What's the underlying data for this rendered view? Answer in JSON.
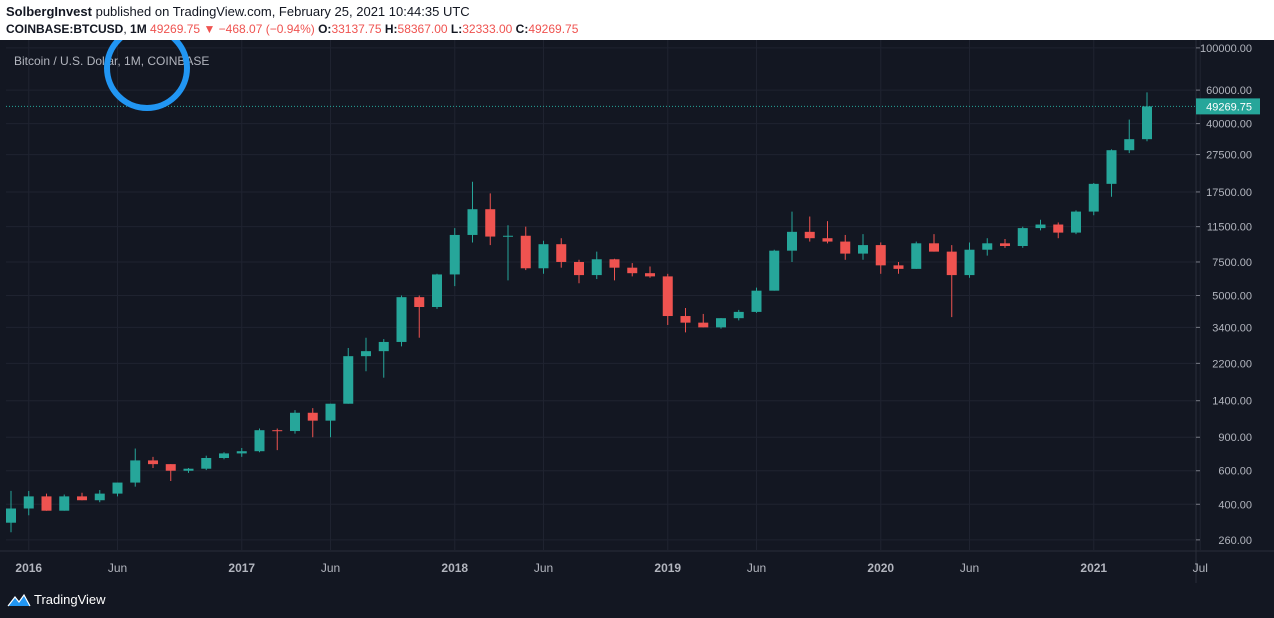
{
  "header": {
    "publisher": "SolbergInvest",
    "published_text": "published on TradingView.com, February 25, 2021 10:44:35 UTC",
    "symbol": "COINBASE:BTCUSD",
    "interval": "1M",
    "last": "49269.75",
    "arrow": "▼",
    "change": "−468.07 (−0.94%)",
    "open_label": "O:",
    "open": "33137.75",
    "high_label": "H:",
    "high": "58367.00",
    "low_label": "L:",
    "low": "32333.00",
    "close_label": "C:",
    "close": "49269.75"
  },
  "footer": {
    "brand": "TradingView"
  },
  "colors": {
    "up": "#26a69a",
    "down": "#ef5350",
    "background": "#131722",
    "highlight_circle": "#2196f3"
  },
  "chart_data": {
    "type": "candlestick",
    "title": "Bitcoin / U.S. Dollar, 1M, COINBASE",
    "last_price_label": "49269.75",
    "y_scale": "log",
    "ylim": [
      230,
      110000
    ],
    "y_ticks": [
      "100000.00",
      "60000.00",
      "40000.00",
      "27500.00",
      "17500.00",
      "11500.00",
      "7500.00",
      "5000.00",
      "3400.00",
      "2200.00",
      "1400.00",
      "900.00",
      "600.00",
      "400.00",
      "260.00"
    ],
    "x_ticks": [
      "2016",
      "Jun",
      "2017",
      "Jun",
      "2018",
      "Jun",
      "2019",
      "Jun",
      "2020",
      "Jun",
      "2021",
      "Jul"
    ],
    "x_tick_months": [
      "2016-01",
      "2016-06",
      "2017-01",
      "2017-06",
      "2018-01",
      "2018-06",
      "2019-01",
      "2019-06",
      "2020-01",
      "2020-06",
      "2021-01",
      "2021-07"
    ],
    "candles": [
      {
        "t": "2015-12",
        "o": 320,
        "h": 470,
        "l": 285,
        "c": 380
      },
      {
        "t": "2016-01",
        "o": 380,
        "h": 470,
        "l": 350,
        "c": 440
      },
      {
        "t": "2016-02",
        "o": 440,
        "h": 455,
        "l": 370,
        "c": 370
      },
      {
        "t": "2016-03",
        "o": 370,
        "h": 450,
        "l": 370,
        "c": 440
      },
      {
        "t": "2016-04",
        "o": 440,
        "h": 460,
        "l": 420,
        "c": 420
      },
      {
        "t": "2016-05",
        "o": 420,
        "h": 475,
        "l": 410,
        "c": 455
      },
      {
        "t": "2016-06",
        "o": 455,
        "h": 520,
        "l": 440,
        "c": 520
      },
      {
        "t": "2016-07",
        "o": 520,
        "h": 785,
        "l": 495,
        "c": 680
      },
      {
        "t": "2016-08",
        "o": 680,
        "h": 710,
        "l": 620,
        "c": 650
      },
      {
        "t": "2016-09",
        "o": 650,
        "h": 650,
        "l": 530,
        "c": 600
      },
      {
        "t": "2016-10",
        "o": 600,
        "h": 620,
        "l": 585,
        "c": 615
      },
      {
        "t": "2016-11",
        "o": 615,
        "h": 720,
        "l": 605,
        "c": 700
      },
      {
        "t": "2016-12",
        "o": 700,
        "h": 750,
        "l": 690,
        "c": 740
      },
      {
        "t": "2017-01",
        "o": 740,
        "h": 790,
        "l": 710,
        "c": 760
      },
      {
        "t": "2017-02",
        "o": 760,
        "h": 1000,
        "l": 750,
        "c": 980
      },
      {
        "t": "2017-03",
        "o": 980,
        "h": 1000,
        "l": 770,
        "c": 970
      },
      {
        "t": "2017-04",
        "o": 970,
        "h": 1250,
        "l": 940,
        "c": 1210
      },
      {
        "t": "2017-05",
        "o": 1210,
        "h": 1280,
        "l": 900,
        "c": 1100
      },
      {
        "t": "2017-06",
        "o": 1100,
        "h": 1350,
        "l": 900,
        "c": 1350
      },
      {
        "t": "2017-07",
        "o": 1350,
        "h": 2650,
        "l": 1350,
        "c": 2400
      },
      {
        "t": "2017-08",
        "o": 2400,
        "h": 3000,
        "l": 2000,
        "c": 2550
      },
      {
        "t": "2017-09",
        "o": 2550,
        "h": 2950,
        "l": 1850,
        "c": 2850
      },
      {
        "t": "2017-10",
        "o": 2850,
        "h": 5000,
        "l": 2700,
        "c": 4900
      },
      {
        "t": "2017-11",
        "o": 4900,
        "h": 5000,
        "l": 3000,
        "c": 4350
      },
      {
        "t": "2017-12",
        "o": 4350,
        "h": 6500,
        "l": 4250,
        "c": 6450
      },
      {
        "t": "2018-01",
        "o": 6450,
        "h": 11300,
        "l": 5600,
        "c": 10400
      },
      {
        "t": "2018-02",
        "o": 10400,
        "h": 19800,
        "l": 9500,
        "c": 14200
      },
      {
        "t": "2018-03",
        "o": 14200,
        "h": 17200,
        "l": 9200,
        "c": 10200
      },
      {
        "t": "2018-04",
        "o": 10200,
        "h": 11700,
        "l": 6000,
        "c": 10300
      },
      {
        "t": "2018-05",
        "o": 10300,
        "h": 11500,
        "l": 6800,
        "c": 6950
      },
      {
        "t": "2018-06",
        "o": 6950,
        "h": 9700,
        "l": 6500,
        "c": 9300
      },
      {
        "t": "2018-07",
        "o": 9300,
        "h": 10000,
        "l": 7000,
        "c": 7500
      },
      {
        "t": "2018-08",
        "o": 7500,
        "h": 7700,
        "l": 5800,
        "c": 6400
      },
      {
        "t": "2018-09",
        "o": 6400,
        "h": 8500,
        "l": 6100,
        "c": 7750
      },
      {
        "t": "2018-10",
        "o": 7750,
        "h": 7800,
        "l": 6000,
        "c": 7000
      },
      {
        "t": "2018-11",
        "o": 7000,
        "h": 7400,
        "l": 6300,
        "c": 6550
      },
      {
        "t": "2018-12",
        "o": 6550,
        "h": 7100,
        "l": 6200,
        "c": 6300
      },
      {
        "t": "2019-01",
        "o": 6300,
        "h": 6500,
        "l": 3500,
        "c": 3900
      },
      {
        "t": "2019-02",
        "o": 3900,
        "h": 4300,
        "l": 3200,
        "c": 3600
      },
      {
        "t": "2019-03",
        "o": 3600,
        "h": 4000,
        "l": 3400,
        "c": 3400
      },
      {
        "t": "2019-04",
        "o": 3400,
        "h": 3800,
        "l": 3350,
        "c": 3800
      },
      {
        "t": "2019-05",
        "o": 3800,
        "h": 4200,
        "l": 3700,
        "c": 4100
      },
      {
        "t": "2019-06",
        "o": 4100,
        "h": 5500,
        "l": 4050,
        "c": 5300
      },
      {
        "t": "2019-07",
        "o": 5300,
        "h": 8700,
        "l": 5300,
        "c": 8600
      },
      {
        "t": "2019-08",
        "o": 8600,
        "h": 13800,
        "l": 7500,
        "c": 10800
      },
      {
        "t": "2019-09",
        "o": 10800,
        "h": 13000,
        "l": 9600,
        "c": 10000
      },
      {
        "t": "2019-10",
        "o": 10000,
        "h": 12300,
        "l": 9400,
        "c": 9600
      },
      {
        "t": "2019-11",
        "o": 9600,
        "h": 10400,
        "l": 7700,
        "c": 8300
      },
      {
        "t": "2019-12",
        "o": 8300,
        "h": 10500,
        "l": 7700,
        "c": 9200
      },
      {
        "t": "2020-01",
        "o": 9200,
        "h": 9500,
        "l": 6500,
        "c": 7200
      },
      {
        "t": "2020-02",
        "o": 7200,
        "h": 7500,
        "l": 6500,
        "c": 6900
      },
      {
        "t": "2020-03",
        "o": 6900,
        "h": 9600,
        "l": 6900,
        "c": 9400
      },
      {
        "t": "2020-04",
        "o": 9400,
        "h": 10500,
        "l": 8500,
        "c": 8500
      },
      {
        "t": "2020-05",
        "o": 8500,
        "h": 9200,
        "l": 3850,
        "c": 6400
      },
      {
        "t": "2020-06",
        "o": 6400,
        "h": 9500,
        "l": 6200,
        "c": 8700
      },
      {
        "t": "2020-07",
        "o": 8700,
        "h": 10000,
        "l": 8100,
        "c": 9400
      },
      {
        "t": "2020-08",
        "o": 9400,
        "h": 9900,
        "l": 8900,
        "c": 9100
      },
      {
        "t": "2020-09",
        "o": 9100,
        "h": 11500,
        "l": 8900,
        "c": 11300
      },
      {
        "t": "2020-10",
        "o": 11300,
        "h": 12500,
        "l": 11000,
        "c": 11800
      },
      {
        "t": "2020-11",
        "o": 11800,
        "h": 12100,
        "l": 10000,
        "c": 10700
      },
      {
        "t": "2020-12",
        "o": 10700,
        "h": 14000,
        "l": 10500,
        "c": 13800
      },
      {
        "t": "2021-01",
        "o": 13800,
        "h": 19500,
        "l": 13200,
        "c": 19300
      },
      {
        "t": "2021-02",
        "o": 19300,
        "h": 29300,
        "l": 16500,
        "c": 29000
      },
      {
        "t": "2021-03",
        "o": 29000,
        "h": 42000,
        "l": 28000,
        "c": 33137.75
      },
      {
        "t": "2021-04",
        "o": 33137.75,
        "h": 58367,
        "l": 32333,
        "c": 49269.75
      }
    ]
  }
}
